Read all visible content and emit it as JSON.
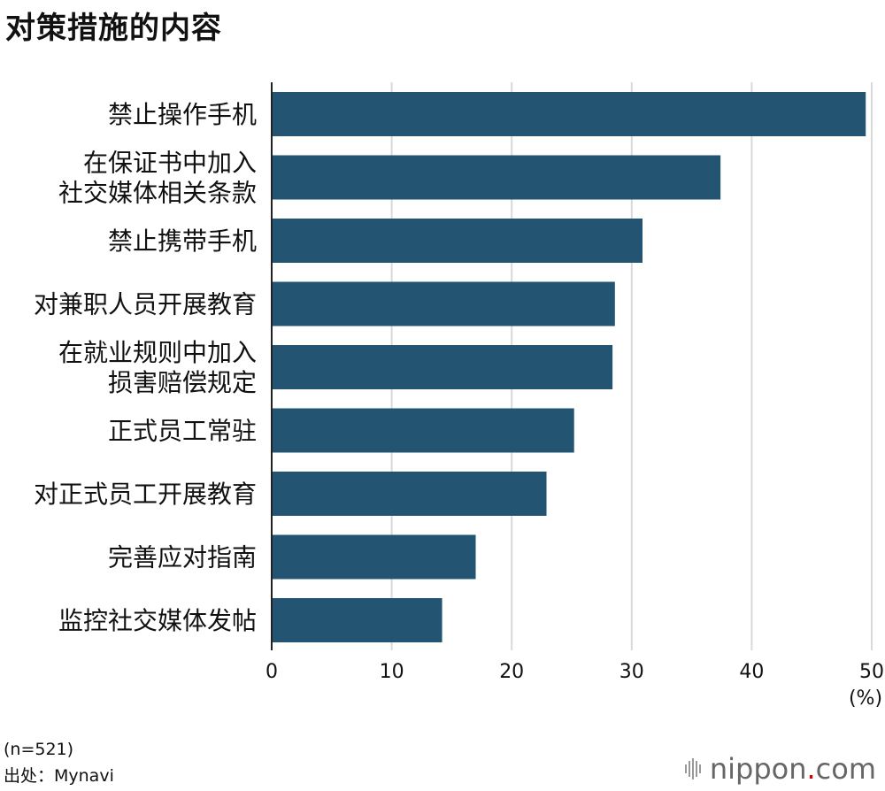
{
  "title": "对策措施的内容",
  "note": "(n=521)",
  "source": "出处：Mynavi",
  "logo": {
    "name": "nippon",
    "dot": ".",
    "suffix": "com"
  },
  "colors": {
    "bar": "#235572",
    "grid": "#d9d9d9",
    "axis": "#222222"
  },
  "chart_data": {
    "type": "bar",
    "orientation": "horizontal",
    "categories": [
      [
        "禁止操作手机"
      ],
      [
        "在保证书中加入",
        "社交媒体相关条款"
      ],
      [
        "禁止携带手机"
      ],
      [
        "对兼职人员开展教育"
      ],
      [
        "在就业规则中加入",
        "损害赔偿规定"
      ],
      [
        "正式员工常驻"
      ],
      [
        "对正式员工开展教育"
      ],
      [
        "完善应对指南"
      ],
      [
        "监控社交媒体发帖"
      ]
    ],
    "values": [
      49.5,
      37.4,
      30.9,
      28.6,
      28.4,
      25.2,
      22.9,
      17.0,
      14.2
    ],
    "xlim": [
      0,
      50
    ],
    "xticks": [
      0,
      10,
      20,
      30,
      40,
      50
    ],
    "xunit": "(%)",
    "grid": true
  }
}
